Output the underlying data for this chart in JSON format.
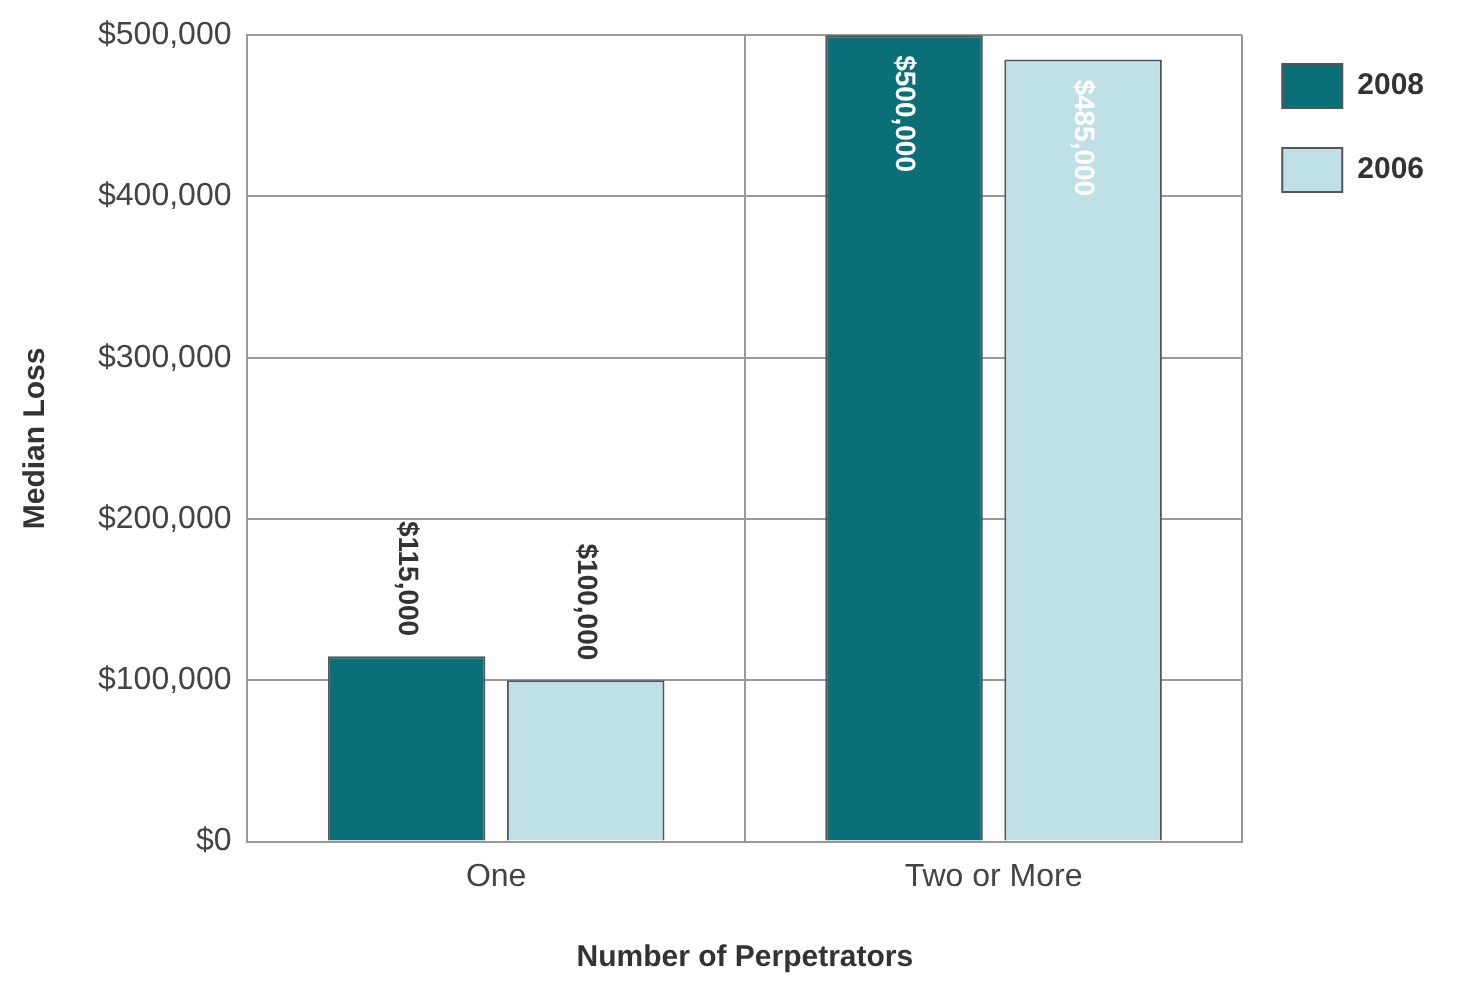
{
  "chart_data": {
    "type": "bar",
    "xlabel": "Number of Perpetrators",
    "ylabel": "Median Loss",
    "categories": [
      "One",
      "Two or More"
    ],
    "series": [
      {
        "name": "2008",
        "color": "#0b6f78",
        "values": [
          115000,
          500000
        ],
        "value_labels": [
          "$115,000",
          "$500,000"
        ]
      },
      {
        "name": "2006",
        "color": "#bfe0e6",
        "values": [
          100000,
          485000
        ],
        "value_labels": [
          "$100,000",
          "$485,000"
        ]
      }
    ],
    "ylim": [
      0,
      500000
    ],
    "yticks": [
      {
        "value": 0,
        "label": "$0"
      },
      {
        "value": 100000,
        "label": "$100,000"
      },
      {
        "value": 200000,
        "label": "$200,000"
      },
      {
        "value": 300000,
        "label": "$300,000"
      },
      {
        "value": 400000,
        "label": "$400,000"
      },
      {
        "value": 500000,
        "label": "$500,000"
      }
    ],
    "grid": true,
    "legend": "top right"
  }
}
